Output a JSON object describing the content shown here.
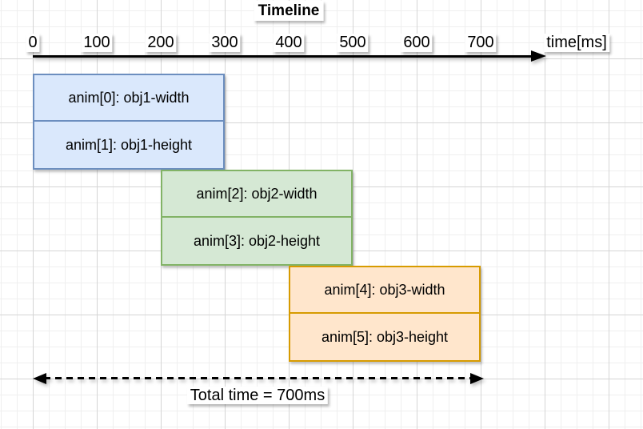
{
  "chart_data": {
    "type": "bar",
    "subtype": "gantt-timeline",
    "title": "Timeline",
    "xlabel": "time[ms]",
    "xlim": [
      0,
      700
    ],
    "x_ticks": [
      0,
      100,
      200,
      300,
      400,
      500,
      600,
      700
    ],
    "grid": "on",
    "bars": [
      {
        "label": "anim[0]: obj1-width",
        "start_ms": 0,
        "end_ms": 300,
        "fill": "#dae8fc",
        "stroke": "#6c8ebf"
      },
      {
        "label": "anim[1]: obj1-height",
        "start_ms": 0,
        "end_ms": 300,
        "fill": "#dae8fc",
        "stroke": "#6c8ebf"
      },
      {
        "label": "anim[2]: obj2-width",
        "start_ms": 200,
        "end_ms": 500,
        "fill": "#d5e8d4",
        "stroke": "#82b366"
      },
      {
        "label": "anim[3]: obj2-height",
        "start_ms": 200,
        "end_ms": 500,
        "fill": "#d5e8d4",
        "stroke": "#82b366"
      },
      {
        "label": "anim[4]: obj3-width",
        "start_ms": 400,
        "end_ms": 700,
        "fill": "#ffe6cc",
        "stroke": "#d79b00"
      },
      {
        "label": "anim[5]: obj3-height",
        "start_ms": 400,
        "end_ms": 700,
        "fill": "#ffe6cc",
        "stroke": "#d79b00"
      }
    ],
    "annotation": {
      "text": "Total time = 700ms",
      "start_ms": 0,
      "end_ms": 700
    }
  },
  "colors": {
    "axis": "#000000",
    "canvas_bg": "#ffffff",
    "grid_minor": "#efefef",
    "grid_major": "#d5d5d5",
    "obj1_fill": "#dae8fc",
    "obj1_stroke": "#6c8ebf",
    "obj2_fill": "#d5e8d4",
    "obj2_stroke": "#82b366",
    "obj3_fill": "#ffe6cc",
    "obj3_stroke": "#d79b00"
  }
}
